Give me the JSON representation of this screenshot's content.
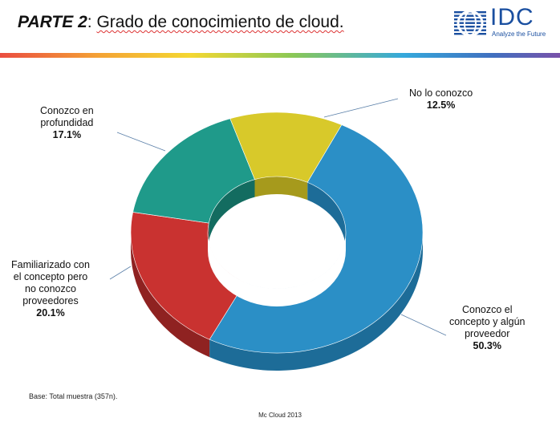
{
  "header": {
    "title_bold": "PARTE 2",
    "title_colon": ":",
    "title_rest": "Grado de conocimiento de cloud.",
    "logo_text": "IDC",
    "logo_tagline": "Analyze the Future"
  },
  "chart_data": {
    "type": "pie",
    "variant": "donut-3d",
    "title": "",
    "slices": [
      {
        "label_lines": [
          "Conozco el",
          "concepto y algún",
          "proveedor"
        ],
        "value": 50.3,
        "value_label": "50.3%",
        "color": "#2b8fc6",
        "side_color": "#1d6c98"
      },
      {
        "label_lines": [
          "Familiarizado con",
          "el concepto pero",
          "no conozco",
          "proveedores"
        ],
        "value": 20.1,
        "value_label": "20.1%",
        "color": "#c93230",
        "side_color": "#8f2221"
      },
      {
        "label_lines": [
          "Conozco en",
          "profundidad"
        ],
        "value": 17.1,
        "value_label": "17.1%",
        "color": "#1f9a8a",
        "side_color": "#136c60"
      },
      {
        "label_lines": [
          "No lo conozco"
        ],
        "value": 12.5,
        "value_label": "12.5%",
        "color": "#d8c92a",
        "side_color": "#a69a1c"
      }
    ]
  },
  "footer": {
    "base": "Base: Total muestra (357n).",
    "center": "Mc Cloud 2013"
  }
}
